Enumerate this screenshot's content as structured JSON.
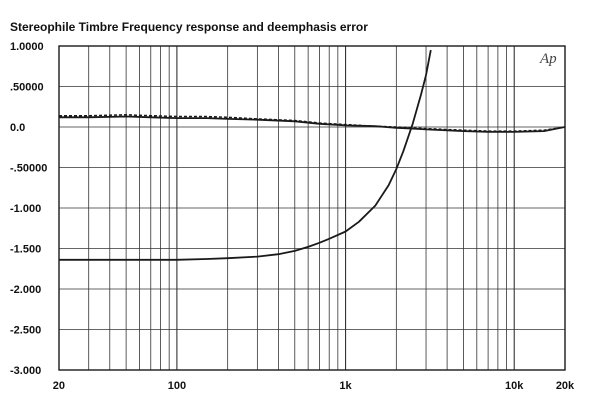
{
  "chart_data": {
    "type": "line",
    "title": "Stereophile  Timbre Frequency response and deemphasis error",
    "logo": "Ap",
    "x_scale": "log",
    "xlim": [
      20,
      20000
    ],
    "ylim": [
      -3.0,
      1.0
    ],
    "x_ticks": [
      {
        "value": 20,
        "label": "20"
      },
      {
        "value": 100,
        "label": "100"
      },
      {
        "value": 1000,
        "label": "1k"
      },
      {
        "value": 10000,
        "label": "10k"
      },
      {
        "value": 20000,
        "label": "20k"
      }
    ],
    "y_ticks": [
      {
        "value": 1.0,
        "label": "1.0000"
      },
      {
        "value": 0.5,
        "label": ".50000"
      },
      {
        "value": 0.0,
        "label": "0.0"
      },
      {
        "value": -0.5,
        "label": "-.50000"
      },
      {
        "value": -1.0,
        "label": "-1.000"
      },
      {
        "value": -1.5,
        "label": "-1.500"
      },
      {
        "value": -2.0,
        "label": "-2.000"
      },
      {
        "value": -2.5,
        "label": "-2.500"
      },
      {
        "value": -3.0,
        "label": "-3.000"
      }
    ],
    "grid": true,
    "series": [
      {
        "style": "solid",
        "color": "#1a1a1a",
        "x": [
          20,
          30,
          50,
          70,
          100,
          150,
          200,
          300,
          500,
          700,
          1000,
          1500,
          2000,
          2500,
          3000
        ],
        "y": [
          0.12,
          0.12,
          0.13,
          0.12,
          0.11,
          0.11,
          0.1,
          0.09,
          0.07,
          0.04,
          0.02,
          0.01,
          -0.01,
          -0.02,
          -0.03
        ]
      },
      {
        "style": "dashed",
        "color": "#1a1a1a",
        "x": [
          20,
          30,
          50,
          70,
          100,
          150,
          200,
          300,
          500,
          700,
          1000,
          1500,
          2000,
          2500,
          3000,
          5000,
          7000,
          10000,
          15000,
          20000
        ],
        "y": [
          0.14,
          0.14,
          0.15,
          0.14,
          0.13,
          0.13,
          0.12,
          0.1,
          0.08,
          0.05,
          0.03,
          0.01,
          0.0,
          -0.01,
          -0.02,
          -0.04,
          -0.05,
          -0.05,
          -0.04,
          0.0
        ]
      },
      {
        "style": "solid",
        "color": "#1a1a1a",
        "x": [
          3000,
          5000,
          7000,
          10000,
          15000,
          20000
        ],
        "y": [
          -0.03,
          -0.05,
          -0.06,
          -0.06,
          -0.05,
          0.0
        ]
      },
      {
        "style": "solid",
        "color": "#1a1a1a",
        "x": [
          20,
          30,
          50,
          70,
          100,
          150,
          200,
          300,
          400,
          500,
          600,
          700,
          800,
          1000,
          1200,
          1500,
          1800,
          2000,
          2200,
          2500,
          2800,
          3000,
          3200
        ],
        "y": [
          -1.64,
          -1.64,
          -1.64,
          -1.64,
          -1.64,
          -1.63,
          -1.62,
          -1.6,
          -1.57,
          -1.53,
          -1.48,
          -1.43,
          -1.38,
          -1.29,
          -1.17,
          -0.97,
          -0.72,
          -0.52,
          -0.3,
          0.04,
          0.4,
          0.64,
          0.95
        ]
      }
    ]
  }
}
